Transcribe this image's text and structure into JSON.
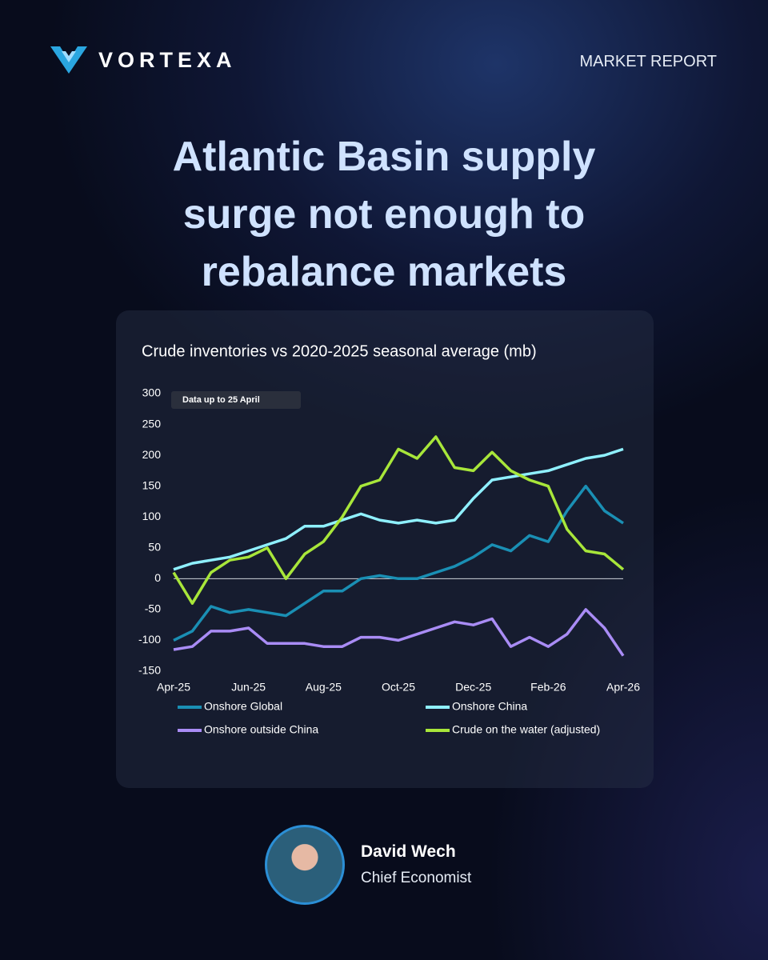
{
  "header": {
    "brand": "VORTEXA",
    "label": "MARKET REPORT"
  },
  "title_lines": [
    "Atlantic Basin supply",
    "surge not enough to",
    "rebalance markets"
  ],
  "chart_data": {
    "type": "line",
    "title": "Crude inventories vs 2020-2025 seasonal average (mb)",
    "annotation": "Data up to 25 April",
    "categories": [
      "Apr-25",
      null,
      null,
      null,
      "Jun-25",
      null,
      null,
      null,
      "Aug-25",
      null,
      null,
      null,
      "Oct-25",
      null,
      null,
      null,
      "Dec-25",
      null,
      null,
      null,
      "Feb-26",
      null,
      null,
      null,
      "Apr-26"
    ],
    "series": [
      {
        "name": "Onshore Global",
        "color": "#1a8fb4",
        "values": [
          -100,
          -85,
          -45,
          -55,
          -50,
          -55,
          -60,
          -40,
          -20,
          -20,
          0,
          5,
          0,
          0,
          10,
          20,
          35,
          55,
          45,
          70,
          60,
          110,
          150,
          110,
          90
        ]
      },
      {
        "name": "Onshore China",
        "color": "#8ff0ff",
        "values": [
          15,
          25,
          30,
          35,
          45,
          55,
          65,
          85,
          85,
          95,
          105,
          95,
          90,
          95,
          90,
          95,
          130,
          160,
          165,
          170,
          175,
          185,
          195,
          200,
          210
        ]
      },
      {
        "name": "Onshore outside China",
        "color": "#a98cf5",
        "values": [
          -115,
          -110,
          -85,
          -85,
          -80,
          -105,
          -105,
          -105,
          -110,
          -110,
          -95,
          -95,
          -100,
          -90,
          -80,
          -70,
          -75,
          -65,
          -110,
          -95,
          -110,
          -90,
          -50,
          -80,
          -125
        ]
      },
      {
        "name": "Crude on the water (adjusted)",
        "color": "#a8e63a",
        "values": [
          10,
          -40,
          10,
          30,
          35,
          50,
          0,
          40,
          60,
          100,
          150,
          160,
          210,
          195,
          230,
          180,
          175,
          205,
          175,
          160,
          150,
          80,
          45,
          40,
          15
        ]
      }
    ],
    "ylim": [
      -150,
      300
    ],
    "yticks": [
      300,
      250,
      200,
      150,
      100,
      50,
      0,
      -50,
      -100,
      -150
    ],
    "grid": false
  },
  "author": {
    "name": "David Wech",
    "role": "Chief Economist"
  }
}
